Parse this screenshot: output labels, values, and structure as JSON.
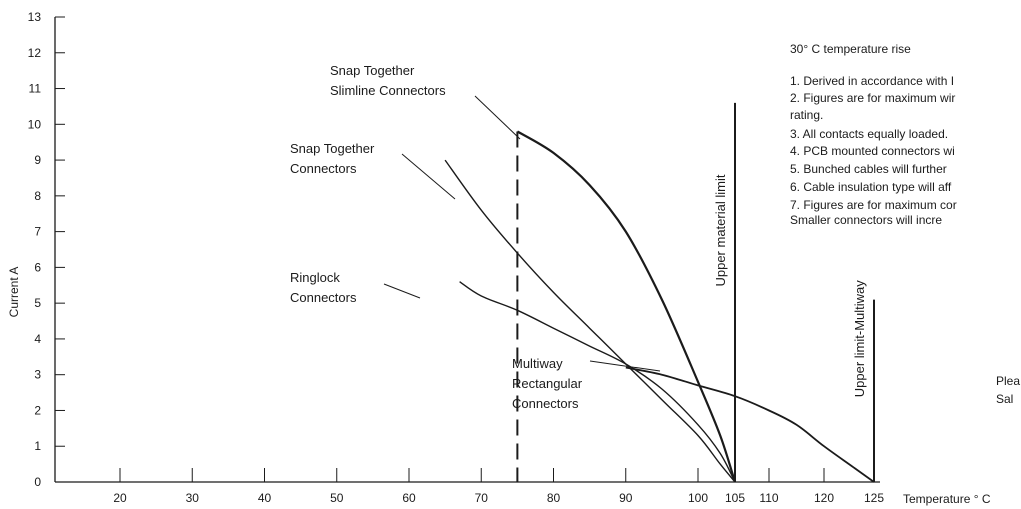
{
  "chart_data": {
    "type": "line",
    "title": "",
    "xlabel": "Temperature ° C",
    "ylabel": "Current A",
    "xlim": [
      10,
      125
    ],
    "ylim": [
      0,
      13
    ],
    "x_ticks": [
      20,
      30,
      40,
      50,
      60,
      70,
      80,
      90,
      100,
      105,
      110,
      120,
      125
    ],
    "y_ticks": [
      0,
      1,
      2,
      3,
      4,
      5,
      6,
      7,
      8,
      9,
      10,
      11,
      12,
      13
    ],
    "grid": false,
    "series": [
      {
        "name": "Snap Together Slimline Connectors",
        "points": [
          [
            75,
            9.8
          ],
          [
            80,
            9.2
          ],
          [
            85,
            8.3
          ],
          [
            90,
            7.0
          ],
          [
            95,
            5.1
          ],
          [
            100,
            2.8
          ],
          [
            103,
            1.3
          ],
          [
            105,
            0
          ]
        ]
      },
      {
        "name": "Snap Together Connectors",
        "points": [
          [
            65,
            9.0
          ],
          [
            70,
            7.6
          ],
          [
            75,
            6.4
          ],
          [
            80,
            5.3
          ],
          [
            85,
            4.3
          ],
          [
            90,
            3.3
          ],
          [
            95,
            2.3
          ],
          [
            100,
            1.3
          ],
          [
            103,
            0.5
          ],
          [
            105,
            0
          ]
        ]
      },
      {
        "name": "Ringlock Connectors",
        "points": [
          [
            67,
            5.6
          ],
          [
            70,
            5.2
          ],
          [
            75,
            4.8
          ],
          [
            80,
            4.3
          ],
          [
            85,
            3.8
          ],
          [
            90,
            3.3
          ],
          [
            95,
            2.6
          ],
          [
            100,
            1.6
          ],
          [
            103,
            0.8
          ],
          [
            105,
            0
          ]
        ]
      },
      {
        "name": "Multiway Rectangular Connectors",
        "points": [
          [
            90,
            3.2
          ],
          [
            95,
            3.0
          ],
          [
            100,
            2.7
          ],
          [
            105,
            2.4
          ],
          [
            110,
            2.0
          ],
          [
            115,
            1.6
          ],
          [
            120,
            1.0
          ],
          [
            123,
            0.4
          ],
          [
            125,
            0
          ]
        ]
      }
    ],
    "reference_lines": [
      {
        "label": "",
        "x": 75,
        "style": "dashed"
      },
      {
        "label": "Upper material limit",
        "x": 105,
        "style": "solid"
      },
      {
        "label": "Upper limit-Multiway",
        "x": 125,
        "style": "solid"
      }
    ],
    "annotations": [
      {
        "series": "Snap Together Slimline Connectors",
        "lines": [
          "Snap Together",
          "Slimline Connectors"
        ]
      },
      {
        "series": "Snap Together Connectors",
        "lines": [
          "Snap Together",
          "Connectors"
        ]
      },
      {
        "series": "Ringlock Connectors",
        "lines": [
          "Ringlock",
          "Connectors"
        ]
      },
      {
        "series": "Multiway Rectangular Connectors",
        "lines": [
          "Multiway",
          "Rectangular",
          "Connectors"
        ]
      }
    ]
  },
  "notes": {
    "heading": "30° C temperature rise",
    "items": [
      "1.   Derived in accordance with I",
      "2.   Figures are for maximum wir",
      "      rating.",
      "3.   All contacts equally loaded.",
      "4.   PCB mounted connectors wi",
      "5.   Bunched cables will further",
      "6.   Cable insulation type will aff",
      "7.   Figures are for maximum cor",
      "      Smaller connectors will incre"
    ],
    "fragment_lines": [
      "Plea",
      "Sal"
    ]
  },
  "colors": {
    "ink": "#1b1b1b",
    "background": "#ffffff"
  }
}
